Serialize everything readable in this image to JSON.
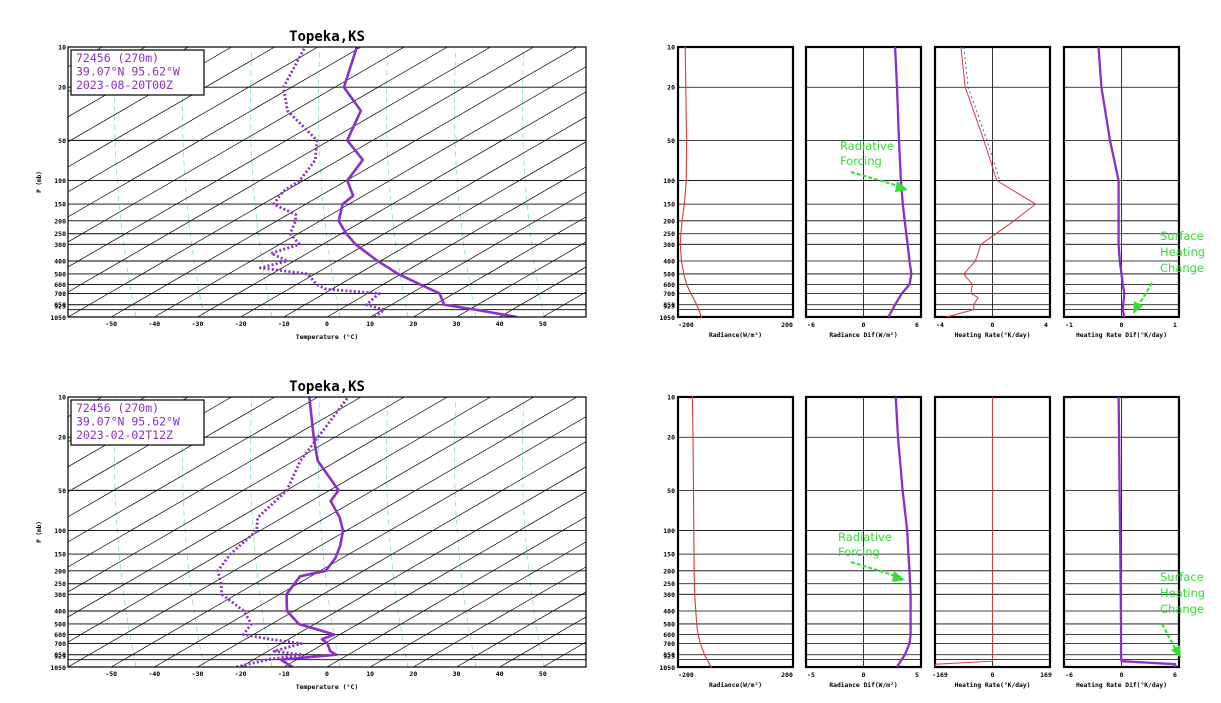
{
  "colors": {
    "profile": "#8b2fc9",
    "radiance": "#d23c3c",
    "diff_line": "#8b2fc9",
    "annotation": "#33dd33",
    "dry_adiabat": "#7fe0c0"
  },
  "skewt_common": {
    "pressure_ticks": [
      "10",
      "20",
      "50",
      "100",
      "150",
      "200",
      "250",
      "300",
      "400",
      "500",
      "600",
      "700",
      "850",
      "925",
      "1050"
    ],
    "temp_ticks": [
      "-50",
      "-40",
      "-30",
      "-20",
      "-10",
      "0",
      "10",
      "20",
      "30",
      "40",
      "50"
    ],
    "xlabel": "Temperature (°C)",
    "ylabel": "P (mb)"
  },
  "chart_data": [
    {
      "type": "line",
      "panel": "skewt",
      "title": "Topeka,KS",
      "info": [
        "72456 (270m)",
        "39.07°N  95.62°W",
        "2023-08-20T00Z"
      ],
      "xlabel": "Temperature (°C)",
      "ylabel": "P (mb)",
      "series": [
        {
          "name": "Temperature",
          "points": [
            [
              1050,
              44
            ],
            [
              925,
              33
            ],
            [
              850,
              25
            ],
            [
              700,
              22
            ],
            [
              600,
              16
            ],
            [
              500,
              9
            ],
            [
              400,
              2
            ],
            [
              300,
              -6
            ],
            [
              250,
              -10
            ],
            [
              200,
              -14
            ],
            [
              150,
              -16
            ],
            [
              130,
              -15
            ],
            [
              100,
              -19
            ],
            [
              70,
              -19
            ],
            [
              50,
              -26
            ],
            [
              30,
              -28
            ],
            [
              20,
              -36
            ],
            [
              10,
              -40
            ]
          ]
        },
        {
          "name": "Dewpoint",
          "points": [
            [
              1050,
              11
            ],
            [
              925,
              12
            ],
            [
              850,
              7
            ],
            [
              700,
              8
            ],
            [
              650,
              -5
            ],
            [
              600,
              -8
            ],
            [
              500,
              -12
            ],
            [
              450,
              -24
            ],
            [
              400,
              -19
            ],
            [
              350,
              -24
            ],
            [
              300,
              -19
            ],
            [
              250,
              -23
            ],
            [
              200,
              -24
            ],
            [
              180,
              -25
            ],
            [
              150,
              -32
            ],
            [
              120,
              -32
            ],
            [
              100,
              -30
            ],
            [
              70,
              -30
            ],
            [
              50,
              -33
            ],
            [
              30,
              -45
            ],
            [
              20,
              -50
            ],
            [
              10,
              -52
            ]
          ]
        }
      ]
    },
    {
      "type": "line",
      "panel": "skewt",
      "title": "Topeka,KS",
      "info": [
        "72456 (270m)",
        "39.07°N  95.62°W",
        "2023-02-02T12Z"
      ],
      "xlabel": "Temperature (°C)",
      "ylabel": "P (mb)",
      "series": [
        {
          "name": "Temperature",
          "points": [
            [
              1050,
              -8
            ],
            [
              925,
              -12
            ],
            [
              850,
              0
            ],
            [
              800,
              -2
            ],
            [
              700,
              -4
            ],
            [
              650,
              -6
            ],
            [
              600,
              -4
            ],
            [
              500,
              -14
            ],
            [
              400,
              -19
            ],
            [
              300,
              -22
            ],
            [
              250,
              -22
            ],
            [
              220,
              -22
            ],
            [
              200,
              -17
            ],
            [
              160,
              -17
            ],
            [
              130,
              -18
            ],
            [
              100,
              -20
            ],
            [
              80,
              -23
            ],
            [
              60,
              -28
            ],
            [
              50,
              -28
            ],
            [
              30,
              -38
            ],
            [
              20,
              -43
            ],
            [
              10,
              -51
            ]
          ]
        },
        {
          "name": "Dewpoint",
          "points": [
            [
              1050,
              -21
            ],
            [
              925,
              -15
            ],
            [
              850,
              -8
            ],
            [
              800,
              -15
            ],
            [
              700,
              -10
            ],
            [
              650,
              -18
            ],
            [
              600,
              -25
            ],
            [
              500,
              -25
            ],
            [
              400,
              -29
            ],
            [
              300,
              -37
            ],
            [
              250,
              -39
            ],
            [
              200,
              -42
            ],
            [
              150,
              -42
            ],
            [
              100,
              -40
            ],
            [
              80,
              -42
            ],
            [
              50,
              -40
            ],
            [
              30,
              -42
            ],
            [
              20,
              -42
            ],
            [
              10,
              -42
            ]
          ]
        }
      ]
    },
    {
      "type": "line",
      "panel": "profile",
      "row": 0,
      "col": 0,
      "xlabel": "Radiance(W/m²)",
      "xticks": [
        "-200",
        "200"
      ],
      "xlim": [
        -200,
        200
      ],
      "series": [
        {
          "points": [
            [
              10,
              -175
            ],
            [
              20,
              -173
            ],
            [
              50,
              -170
            ],
            [
              100,
              -171
            ],
            [
              150,
              -178
            ],
            [
              200,
              -186
            ],
            [
              250,
              -190
            ],
            [
              300,
              -192
            ],
            [
              400,
              -188
            ],
            [
              500,
              -180
            ],
            [
              600,
              -170
            ],
            [
              700,
              -155
            ],
            [
              850,
              -135
            ],
            [
              1050,
              -118
            ]
          ]
        }
      ]
    },
    {
      "type": "line",
      "panel": "profile",
      "row": 0,
      "col": 1,
      "xlabel": "Radiance Dif(W/m²)",
      "xticks": [
        "-6",
        "0",
        "6"
      ],
      "xlim": [
        -6,
        6
      ],
      "annotation": [
        "Radiative",
        "Forcing"
      ],
      "series": [
        {
          "points": [
            [
              10,
              3.3
            ],
            [
              20,
              3.5
            ],
            [
              50,
              3.7
            ],
            [
              100,
              3.9
            ],
            [
              150,
              4.1
            ],
            [
              200,
              4.3
            ],
            [
              300,
              4.6
            ],
            [
              400,
              4.8
            ],
            [
              500,
              5.0
            ],
            [
              600,
              4.8
            ],
            [
              700,
              4.0
            ],
            [
              850,
              3.3
            ],
            [
              1050,
              2.6
            ]
          ]
        }
      ]
    },
    {
      "type": "line",
      "panel": "profile",
      "row": 0,
      "col": 2,
      "xlabel": "Heating Rate(°K/day)",
      "xticks": [
        "-4",
        "0",
        "4"
      ],
      "xlim": [
        -4,
        4
      ],
      "series": [
        {
          "points": [
            [
              10,
              -2.2
            ],
            [
              20,
              -1.9
            ],
            [
              50,
              -0.6
            ],
            [
              100,
              0.3
            ],
            [
              150,
              3.0
            ],
            [
              200,
              1.5
            ],
            [
              300,
              -0.8
            ],
            [
              400,
              -1.2
            ],
            [
              500,
              -2.0
            ],
            [
              600,
              -1.4
            ],
            [
              700,
              -1.5
            ],
            [
              750,
              -1.0
            ],
            [
              850,
              -1.3
            ],
            [
              925,
              -1.3
            ],
            [
              1050,
              -3.2
            ]
          ]
        }
      ]
    },
    {
      "type": "line",
      "panel": "profile",
      "row": 0,
      "col": 3,
      "xlabel": "Heating Rate Dif(°K/day)",
      "xticks": [
        "-1",
        "0",
        "1"
      ],
      "xlim": [
        -1,
        1
      ],
      "annotation": [
        "Surface",
        "Heating",
        "Change"
      ],
      "series": [
        {
          "points": [
            [
              10,
              -0.4
            ],
            [
              20,
              -0.35
            ],
            [
              50,
              -0.2
            ],
            [
              100,
              -0.05
            ],
            [
              150,
              -0.05
            ],
            [
              200,
              -0.05
            ],
            [
              300,
              -0.05
            ],
            [
              400,
              -0.03
            ],
            [
              500,
              0.0
            ],
            [
              600,
              0.02
            ],
            [
              700,
              0.05
            ],
            [
              850,
              0.03
            ],
            [
              925,
              0.02
            ],
            [
              1050,
              0.05
            ]
          ]
        }
      ]
    },
    {
      "type": "line",
      "panel": "profile",
      "row": 1,
      "col": 0,
      "xlabel": "Radiance(W/m²)",
      "xticks": [
        "-200",
        "200"
      ],
      "xlim": [
        -200,
        200
      ],
      "series": [
        {
          "points": [
            [
              10,
              -150
            ],
            [
              20,
              -148
            ],
            [
              50,
              -146
            ],
            [
              100,
              -145
            ],
            [
              200,
              -144
            ],
            [
              300,
              -142
            ],
            [
              400,
              -138
            ],
            [
              500,
              -135
            ],
            [
              600,
              -130
            ],
            [
              700,
              -122
            ],
            [
              850,
              -108
            ],
            [
              1050,
              -85
            ]
          ]
        }
      ]
    },
    {
      "type": "line",
      "panel": "profile",
      "row": 1,
      "col": 1,
      "xlabel": "Radiance Dif(W/m²)",
      "xticks": [
        "-5",
        "0",
        "5"
      ],
      "xlim": [
        -5,
        5
      ],
      "annotation": [
        "Radiative",
        "Forcing"
      ],
      "series": [
        {
          "points": [
            [
              10,
              2.8
            ],
            [
              20,
              3.0
            ],
            [
              50,
              3.4
            ],
            [
              100,
              3.8
            ],
            [
              150,
              3.9
            ],
            [
              200,
              4.0
            ],
            [
              300,
              4.1
            ],
            [
              400,
              4.1
            ],
            [
              500,
              4.1
            ],
            [
              600,
              4.1
            ],
            [
              700,
              4.0
            ],
            [
              850,
              3.6
            ],
            [
              1050,
              2.9
            ]
          ]
        }
      ]
    },
    {
      "type": "line",
      "panel": "profile",
      "row": 1,
      "col": 2,
      "xlabel": "Heating Rate(°K/day)",
      "xticks": [
        "-169",
        "0",
        "169"
      ],
      "xlim": [
        -169,
        169
      ],
      "series": [
        {
          "points": [
            [
              10,
              0
            ],
            [
              850,
              0
            ],
            [
              950,
              0
            ],
            [
              1000,
              -169
            ],
            [
              1050,
              -169
            ]
          ]
        }
      ]
    },
    {
      "type": "line",
      "panel": "profile",
      "row": 1,
      "col": 3,
      "xlabel": "Heating Rate Dif(°K/day)",
      "xticks": [
        "-6",
        "0",
        "6"
      ],
      "xlim": [
        -6,
        6
      ],
      "annotation": [
        "Surface",
        "Heating",
        "Change"
      ],
      "series": [
        {
          "points": [
            [
              10,
              -0.3
            ],
            [
              20,
              -0.25
            ],
            [
              50,
              -0.2
            ],
            [
              100,
              -0.15
            ],
            [
              200,
              -0.1
            ],
            [
              500,
              -0.05
            ],
            [
              850,
              -0.05
            ],
            [
              950,
              0.0
            ],
            [
              1000,
              5.6
            ],
            [
              1050,
              5.6
            ]
          ]
        }
      ]
    }
  ]
}
